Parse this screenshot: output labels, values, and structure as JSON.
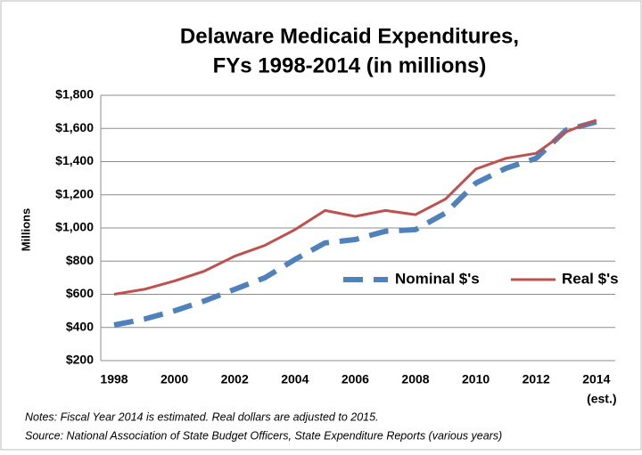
{
  "chart_data": {
    "type": "line",
    "title": [
      "Delaware Medicaid Expenditures,",
      "FYs 1998-2014 (in millions)"
    ],
    "y_label": "Millions",
    "categories": [
      "1998",
      null,
      "2000",
      null,
      "2002",
      null,
      "2004",
      null,
      "2006",
      null,
      "2008",
      null,
      "2010",
      null,
      "2012",
      null,
      "2014"
    ],
    "category_note": "(est.)",
    "series": [
      {
        "name": "Nominal $'s",
        "color": "#4f81bd",
        "dashed": true,
        "values": [
          415,
          450,
          500,
          560,
          630,
          700,
          810,
          910,
          930,
          980,
          990,
          1090,
          1270,
          1360,
          1420,
          1590,
          1640
        ]
      },
      {
        "name": "Real $'s",
        "color": "#c0504d",
        "dashed": false,
        "values": [
          600,
          630,
          680,
          740,
          830,
          895,
          990,
          1105,
          1070,
          1105,
          1080,
          1175,
          1355,
          1420,
          1450,
          1580,
          1650
        ]
      }
    ],
    "ylim": [
      200,
      1800
    ],
    "yticks": [
      {
        "value": 200,
        "label": "$200"
      },
      {
        "value": 400,
        "label": "$400"
      },
      {
        "value": 600,
        "label": "$600"
      },
      {
        "value": 800,
        "label": "$800"
      },
      {
        "value": 1000,
        "label": "$1,000"
      },
      {
        "value": 1200,
        "label": "$1,200"
      },
      {
        "value": 1400,
        "label": "$1,400"
      },
      {
        "value": 1600,
        "label": "$1,600"
      },
      {
        "value": 1800,
        "label": "$1,800"
      }
    ],
    "grid": true,
    "notes": [
      "Notes: Fiscal Year 2014 is estimated.  Real dollars are adjusted to 2015.",
      "Source:  National Association of State Budget Officers, State Expenditure Reports (various years)"
    ]
  }
}
